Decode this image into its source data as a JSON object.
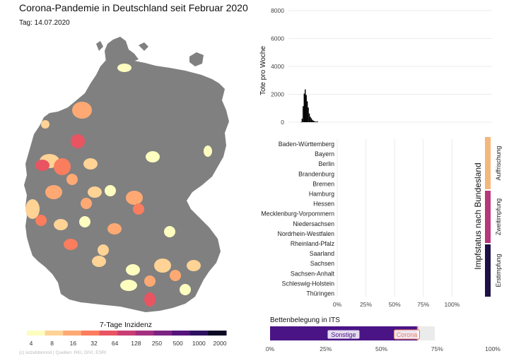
{
  "header": {
    "title": "Corona-Pandemie in Deutschland seit Februar 2020",
    "date_label": "Tag: 14.07.2020"
  },
  "map": {
    "legend_title": "7-Tage Inzidenz",
    "legend_ticks": [
      "4",
      "8",
      "16",
      "32",
      "64",
      "128",
      "250",
      "500",
      "1000",
      "2000"
    ],
    "legend_colors": [
      "#fcfdbf",
      "#fed395",
      "#fea973",
      "#fa7d5e",
      "#e95462",
      "#c83e73",
      "#a3307e",
      "#7c2382",
      "#56147d",
      "#2d1160",
      "#0b0924"
    ],
    "base_color": "#808080",
    "credit": "(c) lutzebbinnnd | Quellen: RKI, DIVI, ESRI"
  },
  "chart_data": [
    {
      "type": "bar",
      "ylabel": "Tote pro Woche",
      "ylim": [
        0,
        8000
      ],
      "yticks": [
        "0",
        "2000",
        "4000",
        "6000",
        "8000"
      ],
      "x_range_weeks": [
        0,
        200
      ],
      "x": [
        12,
        13,
        14,
        15,
        16,
        17,
        18,
        19,
        20,
        21,
        22,
        23,
        24,
        25,
        26,
        27,
        28
      ],
      "values": [
        10,
        250,
        1150,
        2050,
        2350,
        1950,
        1500,
        1050,
        620,
        390,
        280,
        170,
        110,
        70,
        45,
        35,
        55
      ],
      "color": "#000000",
      "grid": true
    },
    {
      "type": "bar",
      "ylabel": "Impfstatus nach Bundesland",
      "categories": [
        "Baden-Württemberg",
        "Bayern",
        "Berlin",
        "Brandenburg",
        "Bremen",
        "Hamburg",
        "Hessen",
        "Mecklenburg-Vorpommern",
        "Niedersachsen",
        "Nordrhein-Westfalen",
        "Rheinland-Pfalz",
        "Saarland",
        "Sachsen",
        "Sachsen-Anhalt",
        "Schleswig-Holstein",
        "Thüringen"
      ],
      "xticks": [
        "0%",
        "25%",
        "50%",
        "75%",
        "100%"
      ],
      "xlim": [
        0,
        1
      ],
      "series": [],
      "facets": [
        {
          "label": "Auffrischung",
          "color": "#f4b77a"
        },
        {
          "label": "Zweitimpfung",
          "color": "#b8367a"
        },
        {
          "label": "Erstimpfung",
          "color": "#1d1147"
        }
      ],
      "grid": true
    },
    {
      "type": "bar",
      "title": "Bettenbelegung in ITS",
      "xticks": [
        "0%",
        "25%",
        "50%",
        "75%",
        "100%"
      ],
      "xlim": [
        0,
        1
      ],
      "segments": [
        {
          "label": "Sonstige",
          "value": 0.66,
          "color": "#4a1487"
        },
        {
          "label": "Corona",
          "value": 0.005,
          "color": "#f07c5a"
        }
      ],
      "background": "#ebebeb"
    }
  ]
}
